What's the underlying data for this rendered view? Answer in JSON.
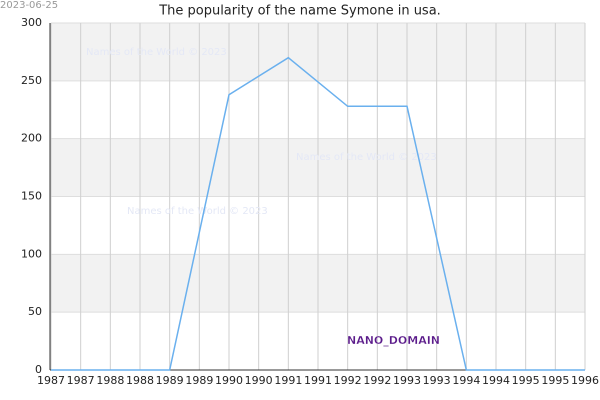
{
  "chart_data": {
    "type": "line",
    "title": "The popularity of the name Symone in usa.",
    "date": "2023-06-25",
    "watermarks": [
      "Names of the World © 2023",
      "Names of the World © 2023",
      "Names of the World © 2023"
    ],
    "annotation": "NANO_DOMAIN",
    "x": [
      1987,
      1988,
      1989,
      1990,
      1991,
      1992,
      1993,
      1994,
      1995,
      1996
    ],
    "values": [
      0,
      0,
      0,
      238,
      270,
      228,
      228,
      0,
      0,
      0
    ],
    "color": "#6ab0ee",
    "xlim": [
      1987,
      1996
    ],
    "xticks": [
      1987,
      {
        "value": 1987.5,
        "label": "1987"
      },
      1988,
      {
        "value": 1988.5,
        "label": "1988"
      },
      1989,
      {
        "value": 1989.5,
        "label": "1989"
      },
      1990,
      {
        "value": 1990.5,
        "label": "1990"
      },
      1991,
      {
        "value": 1991.5,
        "label": "1991"
      },
      1992,
      {
        "value": 1992.5,
        "label": "1992"
      },
      1993,
      {
        "value": 1993.5,
        "label": "1993"
      },
      1994,
      {
        "value": 1994.5,
        "label": "1994"
      },
      1995,
      {
        "value": 1995.5,
        "label": "1995"
      },
      1996
    ],
    "ylim": [
      0,
      300
    ],
    "yticks": [
      0,
      50,
      100,
      150,
      200,
      250,
      300
    ],
    "grid": true,
    "bands": true
  }
}
